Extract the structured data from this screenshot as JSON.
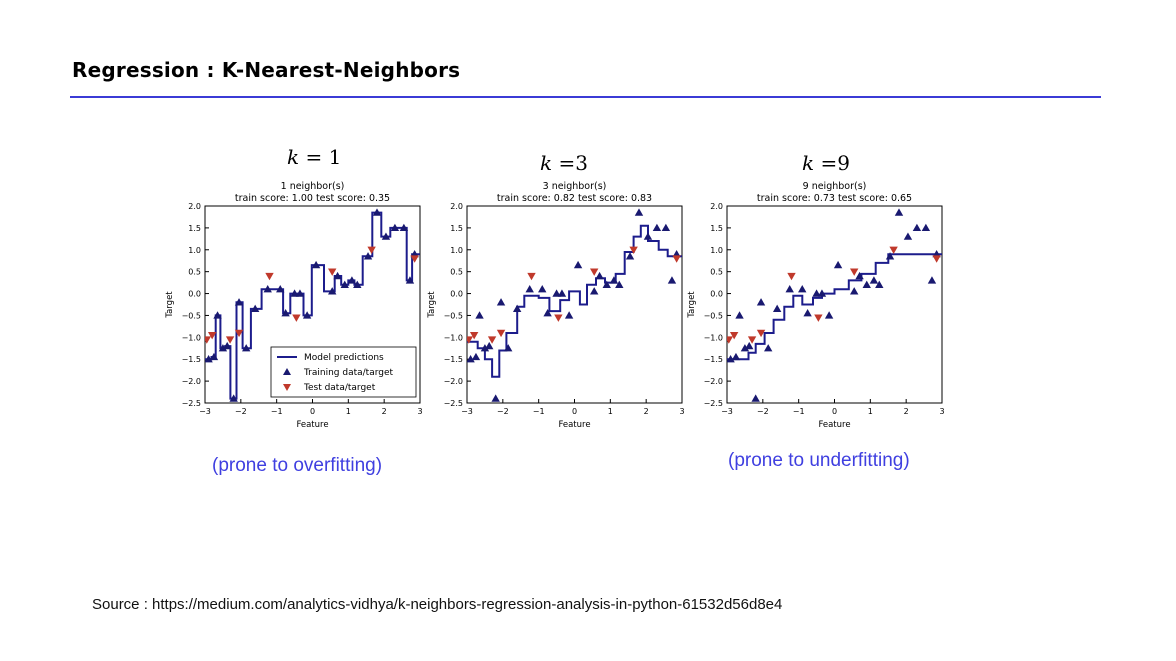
{
  "slide": {
    "title": "Regression : K-Nearest-Neighbors",
    "source": "Source : https://medium.com/analytics-vidhya/k-neighbors-regression-analysis-in-python-61532d56d8e4",
    "accent_color": "#3b3bd6",
    "note_color": "#3f3fe0"
  },
  "k_labels": [
    {
      "k": "k",
      "rest": " = 1"
    },
    {
      "k": "k",
      "rest": " =3"
    },
    {
      "k": "k",
      "rest": " =9"
    }
  ],
  "notes": {
    "overfit": "(prone to overfitting)",
    "underfit": "(prone to underfitting)"
  },
  "legend": {
    "model": "Model predictions",
    "train": "Training data/target",
    "test": "Test data/target"
  },
  "colors": {
    "line": "#1c1c8c",
    "train_marker": "#191970",
    "test_marker": "#c0392b"
  },
  "chart_data": [
    {
      "type": "line",
      "title": "1 neighbor(s)",
      "subtitle": "train score: 1.00 test score: 0.35",
      "xlabel": "Feature",
      "ylabel": "Target",
      "xlim": [
        -3,
        3
      ],
      "ylim": [
        -2.5,
        2.0
      ],
      "xticks": [
        "−3",
        "−2",
        "−1",
        "0",
        "1",
        "2",
        "3"
      ],
      "yticks": [
        "−2.5",
        "−2.0",
        "−1.5",
        "−1.0",
        "−0.5",
        "0.0",
        "0.5",
        "1.0",
        "1.5",
        "2.0"
      ],
      "legend": "lower-right",
      "train": [
        [
          -2.9,
          -1.5
        ],
        [
          -2.75,
          -1.45
        ],
        [
          -2.65,
          -0.5
        ],
        [
          -2.5,
          -1.25
        ],
        [
          -2.38,
          -1.2
        ],
        [
          -2.2,
          -2.4
        ],
        [
          -2.05,
          -0.2
        ],
        [
          -1.85,
          -1.25
        ],
        [
          -1.6,
          -0.35
        ],
        [
          -1.25,
          0.1
        ],
        [
          -0.9,
          0.1
        ],
        [
          -0.75,
          -0.45
        ],
        [
          -0.5,
          0.0
        ],
        [
          -0.35,
          0.0
        ],
        [
          -0.15,
          -0.5
        ],
        [
          0.1,
          0.65
        ],
        [
          0.55,
          0.05
        ],
        [
          0.7,
          0.4
        ],
        [
          0.9,
          0.2
        ],
        [
          1.1,
          0.3
        ],
        [
          1.25,
          0.2
        ],
        [
          1.55,
          0.85
        ],
        [
          1.8,
          1.85
        ],
        [
          2.05,
          1.3
        ],
        [
          2.3,
          1.5
        ],
        [
          2.55,
          1.5
        ],
        [
          2.72,
          0.3
        ],
        [
          2.85,
          0.9
        ]
      ],
      "test": [
        [
          -2.95,
          -1.05
        ],
        [
          -2.8,
          -0.95
        ],
        [
          -2.3,
          -1.05
        ],
        [
          -2.05,
          -0.9
        ],
        [
          -1.2,
          0.4
        ],
        [
          -0.45,
          -0.55
        ],
        [
          0.55,
          0.5
        ],
        [
          1.65,
          1.0
        ],
        [
          2.85,
          0.8
        ]
      ],
      "model": [
        [
          -3,
          -1.5
        ],
        [
          -2.82,
          -1.5
        ],
        [
          -2.82,
          -1.45
        ],
        [
          -2.7,
          -1.45
        ],
        [
          -2.7,
          -0.5
        ],
        [
          -2.57,
          -0.5
        ],
        [
          -2.57,
          -1.25
        ],
        [
          -2.44,
          -1.25
        ],
        [
          -2.44,
          -1.2
        ],
        [
          -2.29,
          -1.2
        ],
        [
          -2.29,
          -2.4
        ],
        [
          -2.12,
          -2.4
        ],
        [
          -2.12,
          -0.2
        ],
        [
          -1.95,
          -0.2
        ],
        [
          -1.95,
          -1.25
        ],
        [
          -1.72,
          -1.25
        ],
        [
          -1.72,
          -0.35
        ],
        [
          -1.42,
          -0.35
        ],
        [
          -1.42,
          0.1
        ],
        [
          -0.82,
          0.1
        ],
        [
          -0.82,
          -0.45
        ],
        [
          -0.62,
          -0.45
        ],
        [
          -0.62,
          0.0
        ],
        [
          -0.25,
          0.0
        ],
        [
          -0.25,
          -0.5
        ],
        [
          -0.02,
          -0.5
        ],
        [
          -0.02,
          0.65
        ],
        [
          0.32,
          0.65
        ],
        [
          0.32,
          0.05
        ],
        [
          0.62,
          0.05
        ],
        [
          0.62,
          0.4
        ],
        [
          0.8,
          0.4
        ],
        [
          0.8,
          0.2
        ],
        [
          1.0,
          0.2
        ],
        [
          1.0,
          0.3
        ],
        [
          1.17,
          0.3
        ],
        [
          1.17,
          0.2
        ],
        [
          1.4,
          0.2
        ],
        [
          1.4,
          0.85
        ],
        [
          1.67,
          0.85
        ],
        [
          1.67,
          1.85
        ],
        [
          1.92,
          1.85
        ],
        [
          1.92,
          1.3
        ],
        [
          2.17,
          1.3
        ],
        [
          2.17,
          1.5
        ],
        [
          2.63,
          1.5
        ],
        [
          2.63,
          0.3
        ],
        [
          2.78,
          0.3
        ],
        [
          2.78,
          0.9
        ],
        [
          3,
          0.9
        ]
      ]
    },
    {
      "type": "line",
      "title": "3 neighbor(s)",
      "subtitle": "train score: 0.82 test score: 0.83",
      "xlabel": "Feature",
      "ylabel": "Target",
      "xlim": [
        -3,
        3
      ],
      "ylim": [
        -2.5,
        2.0
      ],
      "xticks": [
        "−3",
        "−2",
        "−1",
        "0",
        "1",
        "2",
        "3"
      ],
      "yticks": [
        "−2.5",
        "−2.0",
        "−1.5",
        "−1.0",
        "−0.5",
        "0.0",
        "0.5",
        "1.0",
        "1.5",
        "2.0"
      ],
      "legend": "",
      "train": [
        [
          -2.9,
          -1.5
        ],
        [
          -2.75,
          -1.45
        ],
        [
          -2.65,
          -0.5
        ],
        [
          -2.5,
          -1.25
        ],
        [
          -2.38,
          -1.2
        ],
        [
          -2.2,
          -2.4
        ],
        [
          -2.05,
          -0.2
        ],
        [
          -1.85,
          -1.25
        ],
        [
          -1.6,
          -0.35
        ],
        [
          -1.25,
          0.1
        ],
        [
          -0.9,
          0.1
        ],
        [
          -0.75,
          -0.45
        ],
        [
          -0.5,
          0.0
        ],
        [
          -0.35,
          0.0
        ],
        [
          -0.15,
          -0.5
        ],
        [
          0.1,
          0.65
        ],
        [
          0.55,
          0.05
        ],
        [
          0.7,
          0.4
        ],
        [
          0.9,
          0.2
        ],
        [
          1.1,
          0.3
        ],
        [
          1.25,
          0.2
        ],
        [
          1.55,
          0.85
        ],
        [
          1.8,
          1.85
        ],
        [
          2.05,
          1.3
        ],
        [
          2.3,
          1.5
        ],
        [
          2.55,
          1.5
        ],
        [
          2.72,
          0.3
        ],
        [
          2.85,
          0.9
        ]
      ],
      "test": [
        [
          -2.95,
          -1.05
        ],
        [
          -2.8,
          -0.95
        ],
        [
          -2.3,
          -1.05
        ],
        [
          -2.05,
          -0.9
        ],
        [
          -1.2,
          0.4
        ],
        [
          -0.45,
          -0.55
        ],
        [
          0.55,
          0.5
        ],
        [
          1.65,
          1.0
        ],
        [
          2.85,
          0.8
        ]
      ],
      "model": [
        [
          -3,
          -1.1
        ],
        [
          -2.7,
          -1.1
        ],
        [
          -2.7,
          -1.25
        ],
        [
          -2.5,
          -1.25
        ],
        [
          -2.5,
          -1.5
        ],
        [
          -2.3,
          -1.5
        ],
        [
          -2.3,
          -1.9
        ],
        [
          -2.1,
          -1.9
        ],
        [
          -2.1,
          -1.3
        ],
        [
          -1.9,
          -1.3
        ],
        [
          -1.9,
          -0.9
        ],
        [
          -1.6,
          -0.9
        ],
        [
          -1.6,
          -0.3
        ],
        [
          -1.4,
          -0.3
        ],
        [
          -1.4,
          -0.05
        ],
        [
          -1.0,
          -0.05
        ],
        [
          -1.0,
          -0.1
        ],
        [
          -0.7,
          -0.1
        ],
        [
          -0.7,
          -0.4
        ],
        [
          -0.4,
          -0.4
        ],
        [
          -0.4,
          -0.15
        ],
        [
          -0.15,
          -0.15
        ],
        [
          -0.15,
          0.05
        ],
        [
          0.15,
          0.05
        ],
        [
          0.15,
          -0.25
        ],
        [
          0.35,
          -0.25
        ],
        [
          0.35,
          0.2
        ],
        [
          0.6,
          0.2
        ],
        [
          0.6,
          0.35
        ],
        [
          0.85,
          0.35
        ],
        [
          0.85,
          0.25
        ],
        [
          1.15,
          0.25
        ],
        [
          1.15,
          0.45
        ],
        [
          1.4,
          0.45
        ],
        [
          1.4,
          0.95
        ],
        [
          1.65,
          0.95
        ],
        [
          1.65,
          1.3
        ],
        [
          1.85,
          1.3
        ],
        [
          1.85,
          1.55
        ],
        [
          2.05,
          1.55
        ],
        [
          2.05,
          1.2
        ],
        [
          2.35,
          1.2
        ],
        [
          2.35,
          1.0
        ],
        [
          2.6,
          1.0
        ],
        [
          2.6,
          0.85
        ],
        [
          3,
          0.85
        ]
      ]
    },
    {
      "type": "line",
      "title": "9 neighbor(s)",
      "subtitle": "train score: 0.73 test score: 0.65",
      "xlabel": "Feature",
      "ylabel": "Target",
      "xlim": [
        -3,
        3
      ],
      "ylim": [
        -2.5,
        2.0
      ],
      "xticks": [
        "−3",
        "−2",
        "−1",
        "0",
        "1",
        "2",
        "3"
      ],
      "yticks": [
        "−2.5",
        "−2.0",
        "−1.5",
        "−1.0",
        "−0.5",
        "0.0",
        "0.5",
        "1.0",
        "1.5",
        "2.0"
      ],
      "legend": "",
      "train": [
        [
          -2.9,
          -1.5
        ],
        [
          -2.75,
          -1.45
        ],
        [
          -2.65,
          -0.5
        ],
        [
          -2.5,
          -1.25
        ],
        [
          -2.38,
          -1.2
        ],
        [
          -2.2,
          -2.4
        ],
        [
          -2.05,
          -0.2
        ],
        [
          -1.85,
          -1.25
        ],
        [
          -1.6,
          -0.35
        ],
        [
          -1.25,
          0.1
        ],
        [
          -0.9,
          0.1
        ],
        [
          -0.75,
          -0.45
        ],
        [
          -0.5,
          0.0
        ],
        [
          -0.35,
          0.0
        ],
        [
          -0.15,
          -0.5
        ],
        [
          0.1,
          0.65
        ],
        [
          0.55,
          0.05
        ],
        [
          0.7,
          0.4
        ],
        [
          0.9,
          0.2
        ],
        [
          1.1,
          0.3
        ],
        [
          1.25,
          0.2
        ],
        [
          1.55,
          0.85
        ],
        [
          1.8,
          1.85
        ],
        [
          2.05,
          1.3
        ],
        [
          2.3,
          1.5
        ],
        [
          2.55,
          1.5
        ],
        [
          2.72,
          0.3
        ],
        [
          2.85,
          0.9
        ]
      ],
      "test": [
        [
          -2.95,
          -1.05
        ],
        [
          -2.8,
          -0.95
        ],
        [
          -2.3,
          -1.05
        ],
        [
          -2.05,
          -0.9
        ],
        [
          -1.2,
          0.4
        ],
        [
          -0.45,
          -0.55
        ],
        [
          0.55,
          0.5
        ],
        [
          1.65,
          1.0
        ],
        [
          2.85,
          0.8
        ]
      ],
      "model": [
        [
          -3,
          -1.5
        ],
        [
          -2.4,
          -1.5
        ],
        [
          -2.4,
          -1.35
        ],
        [
          -2.2,
          -1.35
        ],
        [
          -2.2,
          -1.15
        ],
        [
          -1.95,
          -1.15
        ],
        [
          -1.95,
          -0.9
        ],
        [
          -1.7,
          -0.9
        ],
        [
          -1.7,
          -0.6
        ],
        [
          -1.4,
          -0.6
        ],
        [
          -1.4,
          -0.3
        ],
        [
          -1.15,
          -0.3
        ],
        [
          -1.15,
          -0.05
        ],
        [
          -0.9,
          -0.05
        ],
        [
          -0.9,
          -0.25
        ],
        [
          -0.6,
          -0.25
        ],
        [
          -0.6,
          -0.1
        ],
        [
          -0.35,
          -0.1
        ],
        [
          -0.35,
          0.0
        ],
        [
          0.0,
          0.0
        ],
        [
          0.0,
          0.1
        ],
        [
          0.4,
          0.1
        ],
        [
          0.4,
          0.3
        ],
        [
          0.75,
          0.3
        ],
        [
          0.75,
          0.45
        ],
        [
          1.15,
          0.45
        ],
        [
          1.15,
          0.7
        ],
        [
          1.5,
          0.7
        ],
        [
          1.5,
          0.9
        ],
        [
          3,
          0.9
        ]
      ]
    }
  ]
}
